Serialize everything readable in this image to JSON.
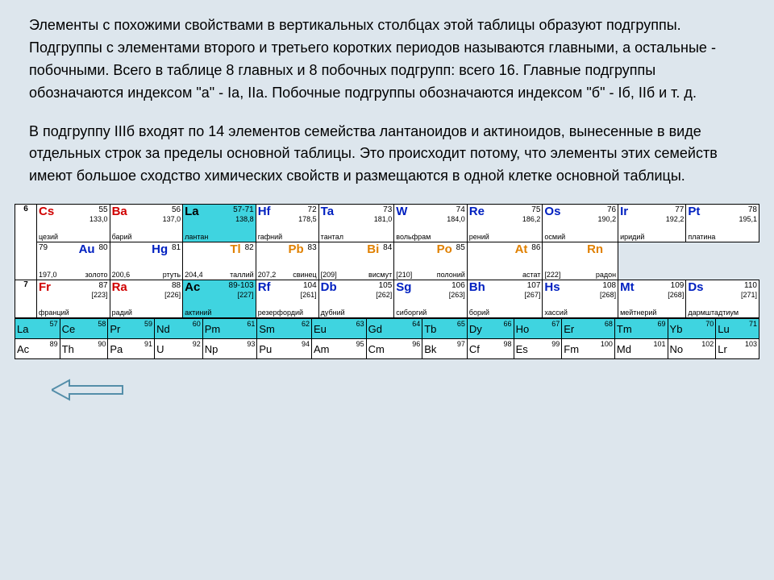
{
  "paragraphs": {
    "p1": "Элементы с похожими свойствами в вертикальных столбцах этой таблицы образуют подгруппы. Подгруппы с элементами второго и третьего коротких периодов называются главными, а остальные - побочными. Всего в таблице 8 главных и 8 побочных подгрупп: всего 16. Главные подгруппы обозначаются индексом \"а\" - Iа, IIа. Побочные подгруппы обозначаются индексом \"б\" - Iб, IIб и т. д.",
    "p2": "В подгруппу IIIб входят по 14 элементов семейства лантаноидов и актиноидов, вынесенные в виде отдельных строк за пределы основной таблицы. Это происходит потому, что элементы этих семейств имеют большое сходство химических свойств и размещаются в одной клетке основной таблицы."
  },
  "colors": {
    "red": "#d00000",
    "blue": "#0020c0",
    "orange": "#e08000",
    "black": "#000",
    "cyan": "#3fd4e0",
    "pagebg": "#dde6ed"
  },
  "periods": {
    "p6": "6",
    "p7": "7"
  },
  "row6a": [
    {
      "sym": "Cs",
      "num": "55",
      "mass": "133,0",
      "name": "цезий",
      "cls": "c-red"
    },
    {
      "sym": "Ba",
      "num": "56",
      "mass": "137,0",
      "name": "барий",
      "cls": "c-red"
    },
    {
      "sym": "La",
      "num": "57-71",
      "mass": "138,8",
      "name": "лантан",
      "cls": "c-black",
      "bg": "bg-cyan"
    },
    {
      "sym": "Hf",
      "num": "72",
      "mass": "178,5",
      "name": "гафний",
      "cls": "c-blue"
    },
    {
      "sym": "Ta",
      "num": "73",
      "mass": "181,0",
      "name": "тантал",
      "cls": "c-blue"
    },
    {
      "sym": "W",
      "num": "74",
      "mass": "184,0",
      "name": "вольфрам",
      "cls": "c-blue"
    },
    {
      "sym": "Re",
      "num": "75",
      "mass": "186,2",
      "name": "рений",
      "cls": "c-blue"
    },
    {
      "sym": "Os",
      "num": "76",
      "mass": "190,2",
      "name": "осмий",
      "cls": "c-blue"
    },
    {
      "sym": "Ir",
      "num": "77",
      "mass": "192,2",
      "name": "иридий",
      "cls": "c-blue"
    },
    {
      "sym": "Pt",
      "num": "78",
      "mass": "195,1",
      "name": "платина",
      "cls": "c-blue"
    }
  ],
  "row6b": [
    {
      "sym": "Au",
      "num": "79 80",
      "mass": "197,0",
      "name": "золото",
      "cls": "c-blue",
      "numleft": "79"
    },
    {
      "sym": "Hg",
      "num": "81",
      "mass": "200,6",
      "name": "ртуть",
      "cls": "c-blue",
      "numleft": "80"
    },
    {
      "sym": "Tl",
      "num": "82",
      "mass": "204,4",
      "name": "таллий",
      "cls": "c-orange",
      "numleft": "81"
    },
    {
      "sym": "Pb",
      "num": "83",
      "mass": "207,2",
      "name": "свинец",
      "cls": "c-orange",
      "numleft": "82"
    },
    {
      "sym": "Bi",
      "num": "84",
      "mass": "[209]",
      "name": "висмут",
      "cls": "c-orange",
      "numleft": "83"
    },
    {
      "sym": "Po",
      "num": "85",
      "mass": "[210]",
      "name": "полоний",
      "cls": "c-orange",
      "numleft": "84"
    },
    {
      "sym": "At",
      "num": "86",
      "mass": "",
      "name": "астат",
      "cls": "c-orange",
      "numleft": "85"
    },
    {
      "sym": "Rn",
      "num": "",
      "mass": "[222]",
      "name": "радон",
      "cls": "c-orange",
      "numleft": "86"
    }
  ],
  "row7": [
    {
      "sym": "Fr",
      "num": "87",
      "mass": "[223]",
      "name": "франций",
      "cls": "c-red"
    },
    {
      "sym": "Ra",
      "num": "88",
      "mass": "[226]",
      "name": "радий",
      "cls": "c-red"
    },
    {
      "sym": "Ac",
      "num": "89-103",
      "mass": "[227]",
      "name": "актиний",
      "cls": "c-black",
      "bg": "bg-cyan"
    },
    {
      "sym": "Rf",
      "num": "104",
      "mass": "[261]",
      "name": "резерфордий",
      "cls": "c-blue"
    },
    {
      "sym": "Db",
      "num": "105",
      "mass": "[262]",
      "name": "дубний",
      "cls": "c-blue"
    },
    {
      "sym": "Sg",
      "num": "106",
      "mass": "[263]",
      "name": "сиборгий",
      "cls": "c-blue"
    },
    {
      "sym": "Bh",
      "num": "107",
      "mass": "[267]",
      "name": "борий",
      "cls": "c-blue"
    },
    {
      "sym": "Hs",
      "num": "108",
      "mass": "[268]",
      "name": "хассий",
      "cls": "c-blue"
    },
    {
      "sym": "Mt",
      "num": "109",
      "mass": "[268]",
      "name": "мейтнерий",
      "cls": "c-blue"
    },
    {
      "sym": "Ds",
      "num": "110",
      "mass": "[271]",
      "name": "дармштадтиум",
      "cls": "c-blue"
    }
  ],
  "lanth": [
    {
      "sym": "La",
      "num": "57"
    },
    {
      "sym": "Ce",
      "num": "58"
    },
    {
      "sym": "Pr",
      "num": "59"
    },
    {
      "sym": "Nd",
      "num": "60"
    },
    {
      "sym": "Pm",
      "num": "61"
    },
    {
      "sym": "Sm",
      "num": "62"
    },
    {
      "sym": "Eu",
      "num": "63"
    },
    {
      "sym": "Gd",
      "num": "64"
    },
    {
      "sym": "Tb",
      "num": "65"
    },
    {
      "sym": "Dy",
      "num": "66"
    },
    {
      "sym": "Ho",
      "num": "67"
    },
    {
      "sym": "Er",
      "num": "68"
    },
    {
      "sym": "Tm",
      "num": "69"
    },
    {
      "sym": "Yb",
      "num": "70"
    },
    {
      "sym": "Lu",
      "num": "71"
    }
  ],
  "actin": [
    {
      "sym": "Ac",
      "num": "89"
    },
    {
      "sym": "Th",
      "num": "90"
    },
    {
      "sym": "Pa",
      "num": "91"
    },
    {
      "sym": "U",
      "num": "92"
    },
    {
      "sym": "Np",
      "num": "93"
    },
    {
      "sym": "Pu",
      "num": "94"
    },
    {
      "sym": "Am",
      "num": "95"
    },
    {
      "sym": "Cm",
      "num": "96"
    },
    {
      "sym": "Bk",
      "num": "97"
    },
    {
      "sym": "Cf",
      "num": "98"
    },
    {
      "sym": "Es",
      "num": "99"
    },
    {
      "sym": "Fm",
      "num": "100"
    },
    {
      "sym": "Md",
      "num": "101"
    },
    {
      "sym": "No",
      "num": "102"
    },
    {
      "sym": "Lr",
      "num": "103"
    }
  ],
  "arrow": {
    "color": "#548ea9",
    "w": 90,
    "h": 30
  }
}
